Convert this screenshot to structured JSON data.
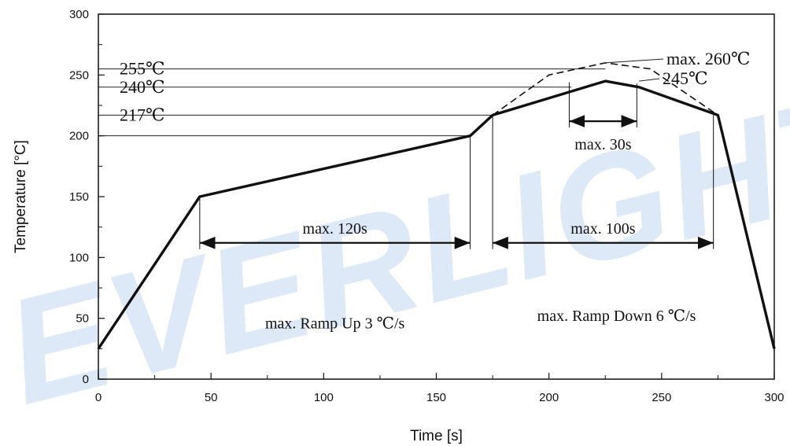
{
  "chart_data": {
    "type": "line",
    "title": "",
    "xlabel": "Time [s]",
    "ylabel": "Temperature [°C]",
    "xlim": [
      0,
      300
    ],
    "ylim": [
      0,
      300
    ],
    "x_ticks": [
      0,
      50,
      100,
      150,
      200,
      250,
      300
    ],
    "y_ticks": [
      0,
      50,
      100,
      150,
      200,
      250,
      300
    ],
    "grid": false,
    "series": [
      {
        "style": "solid-bold",
        "x": [
          0,
          45,
          165,
          175,
          225,
          240,
          275,
          300
        ],
        "y": [
          25,
          150,
          200,
          217,
          245,
          240,
          217,
          25
        ]
      },
      {
        "style": "dashed",
        "x": [
          175,
          200,
          225,
          245,
          275
        ],
        "y": [
          217,
          250,
          260,
          255,
          217
        ]
      }
    ],
    "reference_lines": [
      {
        "y": 255,
        "label": "255℃",
        "x_end": 225
      },
      {
        "y": 240,
        "label": "240℃",
        "x_end": 210
      },
      {
        "y": 217,
        "label": "217℃",
        "x_end": 175
      },
      {
        "y": 200,
        "label": "",
        "x_end": 165
      }
    ],
    "callouts": [
      {
        "label": "max. 260℃",
        "x": 225,
        "y": 260
      },
      {
        "label": "245℃",
        "x": 240,
        "y": 245
      }
    ],
    "dimension_arrows": [
      {
        "label": "max. 120s",
        "x_start": 45,
        "x_end": 165,
        "y": 112
      },
      {
        "label": "max. 100s",
        "x_start": 175,
        "x_end": 273,
        "y": 112
      },
      {
        "label": "max. 30s",
        "x_start": 209,
        "x_end": 239,
        "y": 212
      }
    ],
    "annotations": [
      {
        "text": "max. Ramp Up 3 ℃/s",
        "x": 105,
        "y": 47
      },
      {
        "text": "max. Ramp Down 6 ℃/s",
        "x": 230,
        "y": 53
      }
    ],
    "watermark": "EVERLIGHT"
  }
}
